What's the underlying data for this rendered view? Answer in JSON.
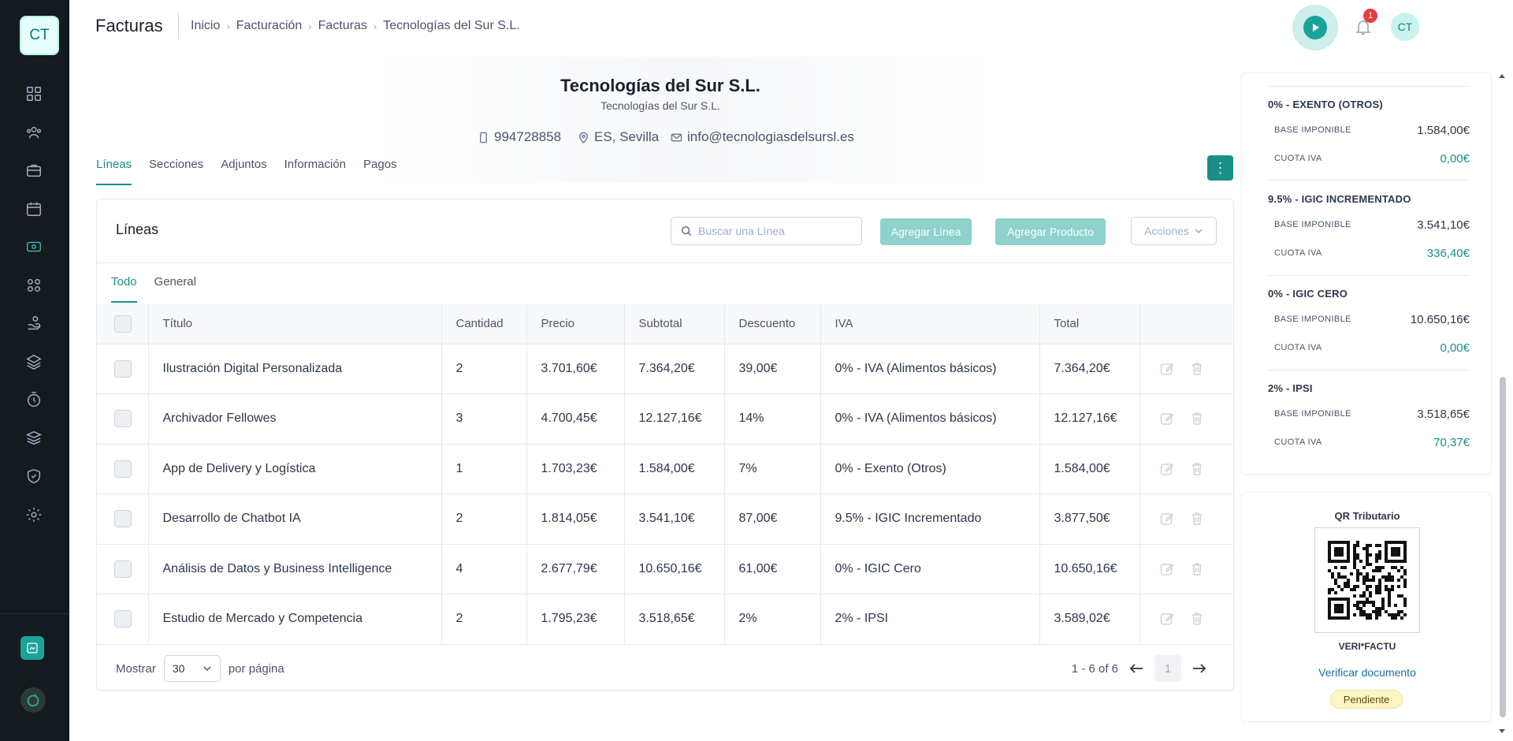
{
  "sidebar": {
    "logo": "CT",
    "nav": [
      "dashboard-icon",
      "users-icon",
      "briefcase-icon",
      "calendar-icon",
      "invoice-icon",
      "modules-icon",
      "hand-icon",
      "layers-icon",
      "timer-icon",
      "stack-icon",
      "shield-icon",
      "settings-icon"
    ],
    "active_nav": "invoice-icon"
  },
  "header": {
    "title": "Facturas",
    "breadcrumb": [
      "Inicio",
      "Facturación",
      "Facturas",
      "Tecnologías del Sur S.L."
    ],
    "notifications": "1",
    "avatar": "CT"
  },
  "company": {
    "name": "Tecnologías del Sur S.L.",
    "subtitle": "Tecnologías del Sur S.L.",
    "phone": "994728858",
    "location": "ES, Sevilla",
    "email": "info@tecnologiasdelsursl.es"
  },
  "main_tabs": [
    "Líneas",
    "Secciones",
    "Adjuntos",
    "Información",
    "Pagos"
  ],
  "lines_card": {
    "title": "Líneas",
    "search_placeholder": "Buscar una Línea",
    "add_line": "Agregar Línea",
    "add_product": "Agregar Producto",
    "actions": "Acciones",
    "sub_tabs": [
      "Todo",
      "General"
    ],
    "columns": [
      "Título",
      "Cantidad",
      "Precio",
      "Subtotal",
      "Descuento",
      "IVA",
      "Total"
    ],
    "rows": [
      {
        "titulo": "Ilustración Digital Personalizada",
        "cantidad": "2",
        "precio": "3.701,60€",
        "subtotal": "7.364,20€",
        "descuento": "39,00€",
        "iva": "0% - IVA (Alimentos básicos)",
        "total": "7.364,20€"
      },
      {
        "titulo": "Archivador Fellowes",
        "cantidad": "3",
        "precio": "4.700,45€",
        "subtotal": "12.127,16€",
        "descuento": "14%",
        "iva": "0% - IVA (Alimentos básicos)",
        "total": "12.127,16€"
      },
      {
        "titulo": "App de Delivery y Logística",
        "cantidad": "1",
        "precio": "1.703,23€",
        "subtotal": "1.584,00€",
        "descuento": "7%",
        "iva": "0% - Exento (Otros)",
        "total": "1.584,00€"
      },
      {
        "titulo": "Desarrollo de Chatbot IA",
        "cantidad": "2",
        "precio": "1.814,05€",
        "subtotal": "3.541,10€",
        "descuento": "87,00€",
        "iva": "9.5% - IGIC Incrementado",
        "total": "3.877,50€"
      },
      {
        "titulo": "Análisis de Datos y Business Intelligence",
        "cantidad": "4",
        "precio": "2.677,79€",
        "subtotal": "10.650,16€",
        "descuento": "61,00€",
        "iva": "0% - IGIC Cero",
        "total": "10.650,16€"
      },
      {
        "titulo": "Estudio de Mercado y Competencia",
        "cantidad": "2",
        "precio": "1.795,23€",
        "subtotal": "3.518,65€",
        "descuento": "2%",
        "iva": "2% - IPSI",
        "total": "3.589,02€"
      }
    ],
    "show_label": "Mostrar",
    "per_page_value": "30",
    "per_page_label": "por página",
    "range": "1 - 6 of 6",
    "page": "1"
  },
  "tax_summary": [
    {
      "title": "0% - EXENTO (OTROS)",
      "base_label": "BASE IMPONIBLE",
      "base": "1.584,00€",
      "cuota_label": "CUOTA IVA",
      "cuota": "0,00€"
    },
    {
      "title": "9.5% - IGIC INCREMENTADO",
      "base_label": "BASE IMPONIBLE",
      "base": "3.541,10€",
      "cuota_label": "CUOTA IVA",
      "cuota": "336,40€"
    },
    {
      "title": "0% - IGIC CERO",
      "base_label": "BASE IMPONIBLE",
      "base": "10.650,16€",
      "cuota_label": "CUOTA IVA",
      "cuota": "0,00€"
    },
    {
      "title": "2% - IPSI",
      "base_label": "BASE IMPONIBLE",
      "base": "3.518,65€",
      "cuota_label": "CUOTA IVA",
      "cuota": "70,37€"
    }
  ],
  "qr": {
    "title": "QR Tributario",
    "brand": "VERI*FACTU",
    "verify_link": "Verificar documento",
    "status": "Pendiente"
  },
  "colors": {
    "accent": "#1a8f88",
    "sidebar": "#151a1f",
    "warning_bg": "#fdf5c4"
  }
}
